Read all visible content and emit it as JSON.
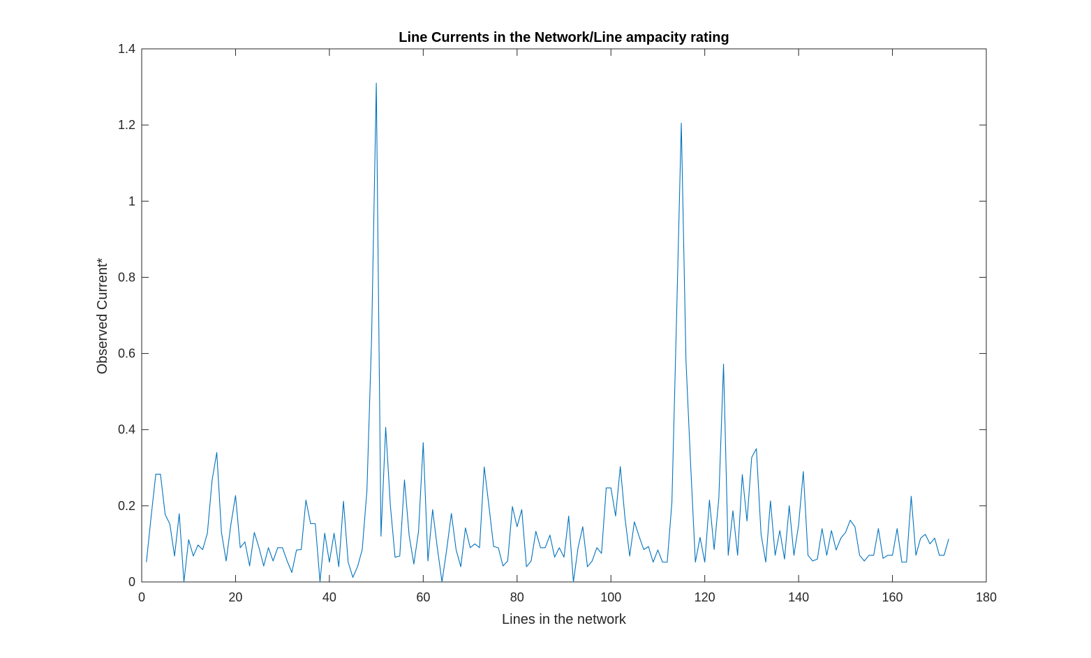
{
  "chart_data": {
    "type": "line",
    "title": "Line Currents in the Network/Line ampacity rating",
    "xlabel": "Lines in the network",
    "ylabel": "Observed Current*",
    "xlim": [
      0,
      180
    ],
    "ylim": [
      0,
      1.4
    ],
    "xticks": [
      "0",
      "20",
      "40",
      "60",
      "80",
      "100",
      "120",
      "140",
      "160",
      "180"
    ],
    "yticks": [
      "0",
      "0.2",
      "0.4",
      "0.6",
      "0.8",
      "1",
      "1.2",
      "1.4"
    ],
    "grid": false,
    "box": true,
    "series": [
      {
        "color": "#0072BD",
        "x": [
          1,
          2,
          3,
          4,
          5,
          6,
          7,
          8,
          9,
          10,
          11,
          12,
          13,
          14,
          15,
          16,
          17,
          18,
          19,
          20,
          21,
          22,
          23,
          24,
          25,
          26,
          27,
          28,
          29,
          30,
          31,
          32,
          33,
          34,
          35,
          36,
          37,
          38,
          39,
          40,
          41,
          42,
          43,
          44,
          45,
          46,
          47,
          48,
          49,
          50,
          51,
          52,
          53,
          54,
          55,
          56,
          57,
          58,
          59,
          60,
          61,
          62,
          63,
          64,
          65,
          66,
          67,
          68,
          69,
          70,
          71,
          72,
          73,
          74,
          75,
          76,
          77,
          78,
          79,
          80,
          81,
          82,
          83,
          84,
          85,
          86,
          87,
          88,
          89,
          90,
          91,
          92,
          93,
          94,
          95,
          96,
          97,
          98,
          99,
          100,
          101,
          102,
          103,
          104,
          105,
          106,
          107,
          108,
          109,
          110,
          111,
          112,
          113,
          114,
          115,
          116,
          117,
          118,
          119,
          120,
          121,
          122,
          123,
          124,
          125,
          126,
          127,
          128,
          129,
          130,
          131,
          132,
          133,
          134,
          135,
          136,
          137,
          138,
          139,
          140,
          141,
          142,
          143,
          144,
          145,
          146,
          147,
          148,
          149,
          150,
          151,
          152,
          153,
          154,
          155,
          156,
          157,
          158,
          159,
          160,
          161,
          162,
          163,
          164,
          165,
          166,
          167,
          168,
          169,
          170,
          171,
          172
        ],
        "y": [
          0.052,
          0.17,
          0.283,
          0.283,
          0.177,
          0.152,
          0.068,
          0.179,
          0.0,
          0.111,
          0.068,
          0.097,
          0.085,
          0.128,
          0.267,
          0.34,
          0.13,
          0.055,
          0.15,
          0.227,
          0.09,
          0.105,
          0.042,
          0.13,
          0.09,
          0.042,
          0.09,
          0.055,
          0.09,
          0.09,
          0.055,
          0.025,
          0.084,
          0.085,
          0.215,
          0.153,
          0.153,
          0.0,
          0.128,
          0.052,
          0.128,
          0.04,
          0.212,
          0.052,
          0.012,
          0.04,
          0.085,
          0.24,
          0.642,
          1.31,
          0.12,
          0.406,
          0.2,
          0.065,
          0.068,
          0.268,
          0.122,
          0.047,
          0.133,
          0.366,
          0.055,
          0.19,
          0.09,
          0.0,
          0.085,
          0.18,
          0.085,
          0.04,
          0.142,
          0.09,
          0.1,
          0.09,
          0.302,
          0.2,
          0.093,
          0.09,
          0.042,
          0.055,
          0.198,
          0.145,
          0.19,
          0.04,
          0.055,
          0.133,
          0.09,
          0.09,
          0.123,
          0.065,
          0.09,
          0.065,
          0.173,
          0.0,
          0.09,
          0.145,
          0.04,
          0.055,
          0.09,
          0.075,
          0.247,
          0.247,
          0.173,
          0.303,
          0.168,
          0.068,
          0.158,
          0.12,
          0.085,
          0.093,
          0.052,
          0.084,
          0.052,
          0.052,
          0.21,
          0.7,
          1.205,
          0.58,
          0.305,
          0.052,
          0.117,
          0.052,
          0.215,
          0.085,
          0.22,
          0.572,
          0.07,
          0.187,
          0.07,
          0.282,
          0.16,
          0.327,
          0.35,
          0.125,
          0.052,
          0.213,
          0.07,
          0.135,
          0.06,
          0.2,
          0.07,
          0.15,
          0.29,
          0.07,
          0.055,
          0.06,
          0.14,
          0.07,
          0.135,
          0.084,
          0.115,
          0.13,
          0.162,
          0.145,
          0.07,
          0.055,
          0.07,
          0.07,
          0.14,
          0.062,
          0.07,
          0.07,
          0.14,
          0.052,
          0.052,
          0.225,
          0.07,
          0.115,
          0.125,
          0.1,
          0.115,
          0.07,
          0.07,
          0.113
        ]
      }
    ]
  }
}
